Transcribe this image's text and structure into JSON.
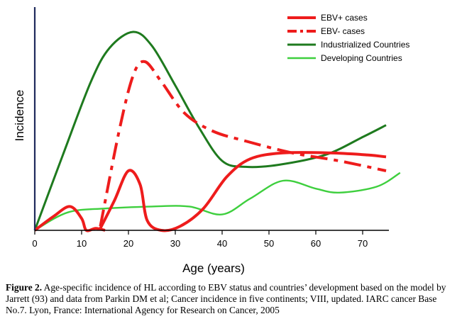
{
  "chart_data": {
    "type": "line",
    "xlabel": "Age (years)",
    "ylabel": "Incidence",
    "xlim": [
      0,
      75
    ],
    "ylim": [
      0,
      100
    ],
    "xticks": [
      "0",
      "10",
      "20",
      "30",
      "40",
      "50",
      "60",
      "70"
    ],
    "yticks": [],
    "grid": false,
    "legend_position": "top-right",
    "series": [
      {
        "name": "EBV+ cases",
        "color": "#ee1c1c",
        "style": "solid",
        "segments": [
          [
            [
              0,
              0
            ],
            [
              4,
              7
            ],
            [
              7.5,
              12
            ],
            [
              10,
              6
            ],
            [
              11,
              0
            ],
            [
              13,
              1
            ],
            [
              15,
              0
            ]
          ],
          [
            [
              14,
              1
            ],
            [
              17,
              15
            ],
            [
              20,
              30
            ],
            [
              22.5,
              23
            ],
            [
              24,
              5
            ],
            [
              27,
              0
            ],
            [
              31,
              2
            ],
            [
              36,
              11
            ],
            [
              41,
              27
            ],
            [
              46,
              36
            ],
            [
              53,
              39
            ],
            [
              63,
              39
            ],
            [
              71,
              38
            ],
            [
              75,
              37
            ]
          ]
        ]
      },
      {
        "name": "EBV- cases",
        "color": "#ee1c1c",
        "style": "dashdot",
        "segments": [
          [
            [
              14,
              2
            ],
            [
              18,
              50
            ],
            [
              21,
              78
            ],
            [
              23.5,
              85
            ],
            [
              27,
              75
            ],
            [
              32,
              59
            ],
            [
              38,
              50
            ],
            [
              45,
              45
            ],
            [
              55,
              39
            ],
            [
              65,
              35
            ],
            [
              75,
              30
            ]
          ]
        ]
      },
      {
        "name": "Industrialized Countries",
        "color": "#1e7a1e",
        "style": "solid",
        "segments": [
          [
            [
              0,
              0
            ],
            [
              6,
              38
            ],
            [
              12,
              75
            ],
            [
              16,
              92
            ],
            [
              21,
              100
            ],
            [
              25,
              93
            ],
            [
              30,
              73
            ],
            [
              35,
              52
            ],
            [
              40,
              35
            ],
            [
              45,
              32
            ],
            [
              52,
              33
            ],
            [
              62,
              38
            ],
            [
              70,
              47
            ],
            [
              75,
              53
            ]
          ]
        ]
      },
      {
        "name": "Developing Countries",
        "color": "#3ecf3e",
        "style": "solid",
        "segments": [
          [
            [
              0,
              0
            ],
            [
              7,
              9
            ],
            [
              15,
              11
            ],
            [
              25,
              12
            ],
            [
              33,
              12
            ],
            [
              40,
              8
            ],
            [
              46,
              16
            ],
            [
              53,
              25
            ],
            [
              60,
              21
            ],
            [
              65,
              19
            ],
            [
              73,
              22
            ],
            [
              78,
              29
            ]
          ]
        ]
      }
    ]
  },
  "caption": {
    "label": "Figure 2.",
    "text": " Age-specific incidence of HL according to EBV status and countries’ development based on the model by Jarrett (93) and data from Parkin DM et al; Cancer incidence in five continents; VIII, updated. IARC cancer Base No.7. Lyon, France: International Agency for Research on Cancer, 2005"
  }
}
